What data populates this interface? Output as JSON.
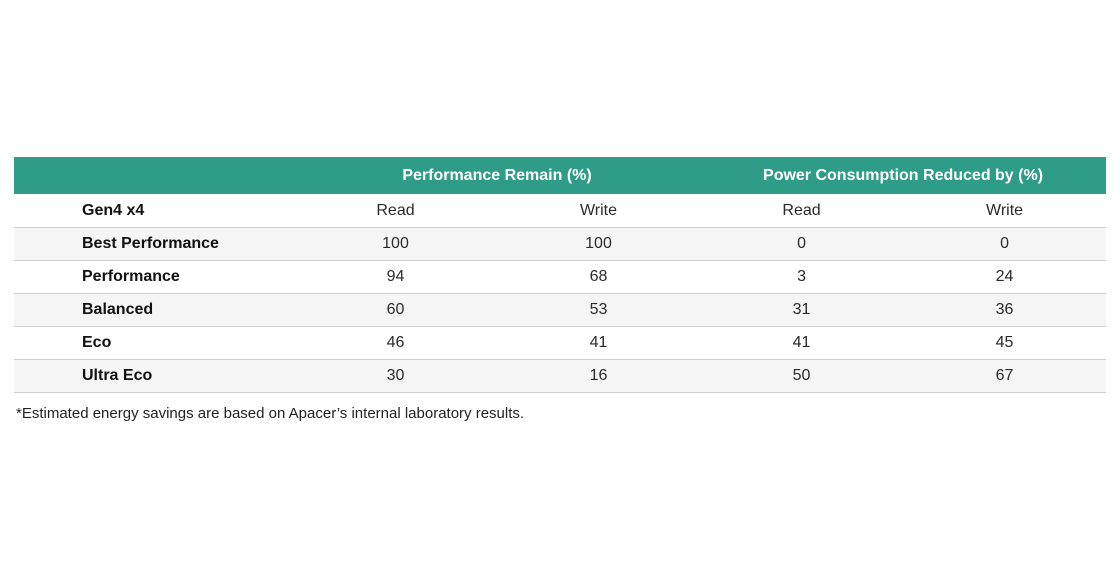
{
  "table": {
    "group_headers": [
      "",
      "Performance Remain (%)",
      "Power Consumption Reduced by (%)"
    ],
    "subheader": {
      "label": "Gen4 x4",
      "cols": [
        "Read",
        "Write",
        "Read",
        "Write"
      ]
    },
    "rows": [
      {
        "label": "Best Performance",
        "values": [
          "100",
          "100",
          "0",
          "0"
        ]
      },
      {
        "label": "Performance",
        "values": [
          "94",
          "68",
          "3",
          "24"
        ]
      },
      {
        "label": "Balanced",
        "values": [
          "60",
          "53",
          "31",
          "36"
        ]
      },
      {
        "label": "Eco",
        "values": [
          "46",
          "41",
          "41",
          "45"
        ]
      },
      {
        "label": "Ultra Eco",
        "values": [
          "30",
          "16",
          "50",
          "67"
        ]
      }
    ]
  },
  "footnote": "*Estimated energy savings are based on Apacer’s internal laboratory results.",
  "colors": {
    "header_bg": "#2e9c86",
    "header_text": "#ffffff",
    "stripe": "#f5f5f5"
  }
}
